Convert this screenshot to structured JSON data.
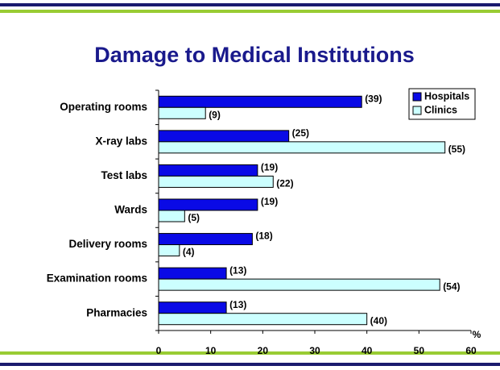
{
  "chart_data": {
    "type": "hbar",
    "title": "Damage to Medical Institutions",
    "categories": [
      "Operating rooms",
      "X-ray labs",
      "Test labs",
      "Wards",
      "Delivery rooms",
      "Examination rooms",
      "Pharmacies"
    ],
    "series": [
      {
        "name": "Hospitals",
        "color": "#0a0ae6",
        "values": [
          39,
          25,
          19,
          19,
          18,
          13,
          13
        ],
        "value_labels": [
          "(39)",
          "(25)",
          "(19)",
          "(19)",
          "(18)",
          "(13)",
          "(13)"
        ]
      },
      {
        "name": "Clinics",
        "color": "#ccffff",
        "values": [
          9,
          55,
          22,
          5,
          4,
          54,
          40
        ],
        "value_labels": [
          "(9)",
          "(55)",
          "(22)",
          "(5)",
          "(4)",
          "(54)",
          "(40)"
        ]
      }
    ],
    "xlabel": "%",
    "xlim": [
      0,
      60
    ],
    "xticks": [
      0,
      10,
      20,
      30,
      40,
      50,
      60
    ],
    "legend": "top-right"
  }
}
